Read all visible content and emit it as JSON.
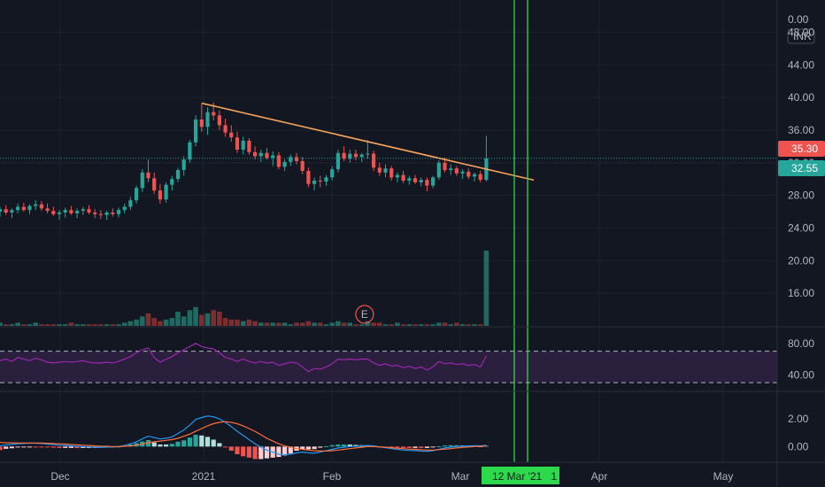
{
  "currency": "INR",
  "colors": {
    "background": "#131722",
    "grid": "#1f2330",
    "up": "#26a69a",
    "down": "#ef5350",
    "up_vol": "#1f6b63",
    "down_vol": "#7d2e30",
    "trendline": "#f7a35c",
    "rsi_line": "#9c27b0",
    "rsi_band": "#2a1f3d",
    "macd_line": "#2196f3",
    "signal_line": "#ff6d3a",
    "vline": "#2bd94a",
    "hist_pos_strong": "#26a69a",
    "hist_pos_weak": "#b2dfdb",
    "hist_neg_strong": "#ef5350",
    "hist_neg_weak": "#ffcdd2"
  },
  "price_axis": {
    "top_label": "0.00",
    "ticks": [
      "48.00",
      "44.00",
      "40.00",
      "36.00",
      "32.00",
      "28.00",
      "24.00",
      "20.00",
      "16.00"
    ]
  },
  "rsi_axis": {
    "ticks": [
      "80.00",
      "40.00"
    ]
  },
  "macd_axis": {
    "ticks": [
      "2.00",
      "0.00"
    ]
  },
  "time_axis": {
    "labels": [
      "Dec",
      "2021",
      "Feb",
      "Mar",
      "Apr",
      "May"
    ],
    "crosshair_label": "12 Mar '21   1"
  },
  "price_tags": {
    "high": "35.30",
    "last": "32.55"
  },
  "earnings_marker": "E",
  "chart_data": {
    "type": "candlestick",
    "ylim": [
      12,
      50
    ],
    "ohlc": [
      [
        26.0,
        26.6,
        25.4,
        26.3
      ],
      [
        26.3,
        26.8,
        25.6,
        25.9
      ],
      [
        25.9,
        26.4,
        25.2,
        26.2
      ],
      [
        26.2,
        27.0,
        25.8,
        26.6
      ],
      [
        26.6,
        27.1,
        26.0,
        26.2
      ],
      [
        26.2,
        26.9,
        25.7,
        26.7
      ],
      [
        26.7,
        27.4,
        26.2,
        26.9
      ],
      [
        26.9,
        27.3,
        26.1,
        26.4
      ],
      [
        26.4,
        27.0,
        25.8,
        26.1
      ],
      [
        26.1,
        26.6,
        25.5,
        25.7
      ],
      [
        25.7,
        26.2,
        25.0,
        25.9
      ],
      [
        25.9,
        26.5,
        25.3,
        26.2
      ],
      [
        26.2,
        26.7,
        25.6,
        25.8
      ],
      [
        25.8,
        26.4,
        25.2,
        26.1
      ],
      [
        26.1,
        26.6,
        25.6,
        26.3
      ],
      [
        26.3,
        26.8,
        25.7,
        25.9
      ],
      [
        25.9,
        26.3,
        25.2,
        25.7
      ],
      [
        25.7,
        26.2,
        25.1,
        25.6
      ],
      [
        25.6,
        26.1,
        25.0,
        25.9
      ],
      [
        25.9,
        26.4,
        25.4,
        25.7
      ],
      [
        25.7,
        26.5,
        25.3,
        26.2
      ],
      [
        26.2,
        27.0,
        25.8,
        26.6
      ],
      [
        26.6,
        27.8,
        26.2,
        27.4
      ],
      [
        27.4,
        29.2,
        27.0,
        28.9
      ],
      [
        28.9,
        31.2,
        28.4,
        30.8
      ],
      [
        30.8,
        32.4,
        29.6,
        30.1
      ],
      [
        30.1,
        30.8,
        28.2,
        28.6
      ],
      [
        28.6,
        29.4,
        27.0,
        27.5
      ],
      [
        27.5,
        29.6,
        27.1,
        29.3
      ],
      [
        29.3,
        30.4,
        28.6,
        30.0
      ],
      [
        30.0,
        31.4,
        29.6,
        31.1
      ],
      [
        31.1,
        32.8,
        30.4,
        32.4
      ],
      [
        32.4,
        34.8,
        32.0,
        34.5
      ],
      [
        34.5,
        37.8,
        34.0,
        37.3
      ],
      [
        37.3,
        39.2,
        35.8,
        36.4
      ],
      [
        36.4,
        38.8,
        35.4,
        38.2
      ],
      [
        38.2,
        39.4,
        37.2,
        37.8
      ],
      [
        37.8,
        38.4,
        36.0,
        36.6
      ],
      [
        36.6,
        37.4,
        35.2,
        35.7
      ],
      [
        35.7,
        36.6,
        34.6,
        35.1
      ],
      [
        35.1,
        35.8,
        33.2,
        33.6
      ],
      [
        33.6,
        35.2,
        33.0,
        34.7
      ],
      [
        34.7,
        35.0,
        33.0,
        33.3
      ],
      [
        33.3,
        34.0,
        32.4,
        32.8
      ],
      [
        32.8,
        33.6,
        32.1,
        33.2
      ],
      [
        33.2,
        33.8,
        32.4,
        32.6
      ],
      [
        32.6,
        33.4,
        31.6,
        32.9
      ],
      [
        32.9,
        33.3,
        31.2,
        31.5
      ],
      [
        31.5,
        32.4,
        31.0,
        32.1
      ],
      [
        32.1,
        33.0,
        31.6,
        32.7
      ],
      [
        32.7,
        33.2,
        31.8,
        32.2
      ],
      [
        32.2,
        32.7,
        30.6,
        31.0
      ],
      [
        31.0,
        31.4,
        29.0,
        29.4
      ],
      [
        29.4,
        30.2,
        28.6,
        29.8
      ],
      [
        29.8,
        30.4,
        29.0,
        29.7
      ],
      [
        29.7,
        30.5,
        29.2,
        30.2
      ],
      [
        30.2,
        31.6,
        29.8,
        31.2
      ],
      [
        31.2,
        33.6,
        30.8,
        33.2
      ],
      [
        33.2,
        34.0,
        32.2,
        32.5
      ],
      [
        32.5,
        33.6,
        32.0,
        33.1
      ],
      [
        33.1,
        33.6,
        32.3,
        32.7
      ],
      [
        32.7,
        33.2,
        32.1,
        33.0
      ],
      [
        33.0,
        34.8,
        32.5,
        33.1
      ],
      [
        33.1,
        33.5,
        31.0,
        31.4
      ],
      [
        31.4,
        32.0,
        30.4,
        30.8
      ],
      [
        30.8,
        31.8,
        30.2,
        31.3
      ],
      [
        31.3,
        31.6,
        29.8,
        30.2
      ],
      [
        30.2,
        30.8,
        29.6,
        30.5
      ],
      [
        30.5,
        31.0,
        29.5,
        29.8
      ],
      [
        29.8,
        30.4,
        29.3,
        30.1
      ],
      [
        30.1,
        30.5,
        29.4,
        29.6
      ],
      [
        29.6,
        30.2,
        29.1,
        29.9
      ],
      [
        29.9,
        30.2,
        28.5,
        29.2
      ],
      [
        29.2,
        30.4,
        28.9,
        30.2
      ],
      [
        30.2,
        32.3,
        29.9,
        32.0
      ],
      [
        32.0,
        32.6,
        30.8,
        31.1
      ],
      [
        31.1,
        31.8,
        30.5,
        31.3
      ],
      [
        31.3,
        31.6,
        30.4,
        30.7
      ],
      [
        30.7,
        31.2,
        30.0,
        30.9
      ],
      [
        30.9,
        31.3,
        30.0,
        30.3
      ],
      [
        30.3,
        30.8,
        29.7,
        30.6
      ],
      [
        30.6,
        31.0,
        29.6,
        29.9
      ],
      [
        29.9,
        35.3,
        29.7,
        32.55
      ]
    ],
    "volume": [
      2,
      1,
      1,
      2,
      1,
      1,
      2,
      1,
      1,
      1,
      1,
      1,
      2,
      1,
      1,
      1,
      1,
      1,
      1,
      1,
      1,
      2,
      3,
      4,
      6,
      8,
      5,
      3,
      4,
      5,
      9,
      6,
      10,
      12,
      7,
      8,
      10,
      9,
      5,
      4,
      4,
      3,
      4,
      3,
      2,
      2,
      2,
      2,
      2,
      1,
      2,
      2,
      3,
      2,
      2,
      1,
      2,
      3,
      2,
      2,
      1,
      1,
      3,
      2,
      2,
      1,
      1,
      2,
      1,
      1,
      1,
      1,
      1,
      1,
      2,
      2,
      1,
      2,
      1,
      1,
      1,
      1,
      48
    ],
    "rsi": [
      58,
      60,
      57,
      62,
      60,
      58,
      61,
      59,
      56,
      55,
      56,
      57,
      56,
      57,
      58,
      56,
      55,
      55,
      56,
      55,
      57,
      60,
      63,
      68,
      72,
      74,
      62,
      56,
      60,
      63,
      68,
      72,
      76,
      80,
      76,
      74,
      73,
      68,
      62,
      60,
      57,
      60,
      57,
      55,
      57,
      55,
      56,
      52,
      54,
      56,
      55,
      50,
      44,
      48,
      47,
      50,
      54,
      60,
      59,
      60,
      59,
      60,
      60,
      55,
      52,
      54,
      51,
      52,
      49,
      51,
      48,
      50,
      46,
      50,
      57,
      54,
      55,
      53,
      54,
      52,
      53,
      50,
      64
    ],
    "macd": [
      0.05,
      0.12,
      0.15,
      0.2,
      0.22,
      0.25,
      0.24,
      0.22,
      0.18,
      0.14,
      0.1,
      0.08,
      0.05,
      0.02,
      0.0,
      -0.02,
      -0.05,
      -0.05,
      -0.04,
      -0.03,
      0.0,
      0.08,
      0.2,
      0.35,
      0.55,
      0.75,
      0.65,
      0.55,
      0.6,
      0.7,
      0.95,
      1.2,
      1.55,
      1.95,
      2.1,
      2.2,
      2.15,
      2.0,
      1.75,
      1.45,
      1.1,
      0.8,
      0.5,
      0.2,
      -0.05,
      -0.25,
      -0.4,
      -0.55,
      -0.6,
      -0.55,
      -0.45,
      -0.4,
      -0.45,
      -0.48,
      -0.4,
      -0.3,
      -0.2,
      -0.1,
      -0.05,
      0.0,
      0.02,
      0.05,
      0.08,
      0.05,
      -0.02,
      -0.08,
      -0.15,
      -0.2,
      -0.25,
      -0.28,
      -0.3,
      -0.32,
      -0.35,
      -0.3,
      -0.2,
      -0.1,
      -0.05,
      0.0,
      0.02,
      0.05,
      0.06,
      0.05,
      0.1
    ],
    "signal": [
      0.3,
      0.28,
      0.27,
      0.26,
      0.26,
      0.26,
      0.26,
      0.25,
      0.24,
      0.22,
      0.2,
      0.18,
      0.15,
      0.13,
      0.1,
      0.08,
      0.05,
      0.03,
      0.02,
      0.0,
      0.0,
      0.02,
      0.05,
      0.1,
      0.18,
      0.28,
      0.35,
      0.4,
      0.45,
      0.5,
      0.6,
      0.75,
      0.9,
      1.1,
      1.3,
      1.5,
      1.65,
      1.75,
      1.8,
      1.75,
      1.65,
      1.5,
      1.3,
      1.1,
      0.85,
      0.6,
      0.4,
      0.2,
      0.05,
      -0.05,
      -0.15,
      -0.2,
      -0.25,
      -0.3,
      -0.32,
      -0.32,
      -0.3,
      -0.25,
      -0.2,
      -0.15,
      -0.1,
      -0.05,
      0.0,
      0.0,
      -0.02,
      -0.05,
      -0.08,
      -0.12,
      -0.15,
      -0.18,
      -0.2,
      -0.22,
      -0.25,
      -0.25,
      -0.22,
      -0.18,
      -0.15,
      -0.1,
      -0.06,
      -0.03,
      0.0,
      0.02,
      0.04
    ],
    "macd_ylim": [
      -1.0,
      3.6
    ],
    "rsi_ylim": [
      20,
      100
    ],
    "rsi_bands": [
      70,
      30
    ],
    "earnings_index": 57,
    "trendline": {
      "start_index": 34,
      "start_price": 39.3,
      "end_index": 83,
      "end_price": 30.2
    },
    "vlines_index": [
      81,
      83
    ]
  }
}
